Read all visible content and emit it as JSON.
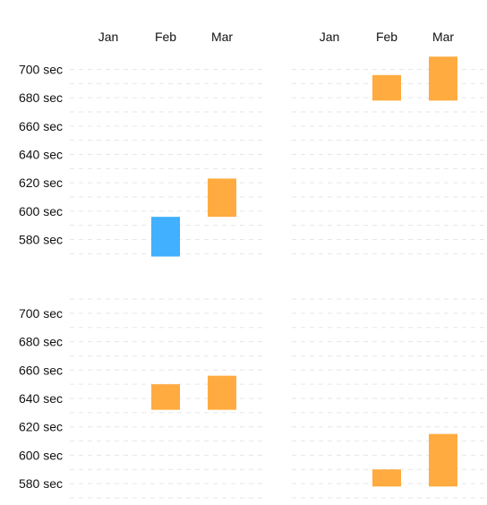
{
  "colors": {
    "increase": "#ffab40",
    "decrease": "#40b0ff",
    "grid": "#e6e6e6",
    "text": "#111111"
  },
  "chart_data": [
    {
      "type": "bar",
      "subtype": "floating-range",
      "title": "",
      "categories": [
        "Jan",
        "Feb",
        "Mar"
      ],
      "ylabel": "",
      "ylim": [
        562,
        706
      ],
      "yticks": [
        580,
        600,
        620,
        640,
        660,
        680,
        700
      ],
      "ytick_labels": [
        "580 sec",
        "600 sec",
        "620 sec",
        "640 sec",
        "660 sec",
        "680 sec",
        "700 sec"
      ],
      "grid": true,
      "bars": [
        {
          "category": "Jan",
          "low": null,
          "high": null
        },
        {
          "category": "Feb",
          "low": 568,
          "high": 596,
          "color": "decrease"
        },
        {
          "category": "Mar",
          "low": 596,
          "high": 623,
          "color": "increase"
        }
      ]
    },
    {
      "type": "bar",
      "subtype": "floating-range",
      "title": "",
      "categories": [
        "Jan",
        "Feb",
        "Mar"
      ],
      "ylabel": "",
      "ylim": [
        562,
        706
      ],
      "grid": true,
      "bars": [
        {
          "category": "Jan",
          "low": null,
          "high": null
        },
        {
          "category": "Feb",
          "low": 678,
          "high": 696,
          "color": "increase"
        },
        {
          "category": "Mar",
          "low": 678,
          "high": 709,
          "color": "increase"
        }
      ]
    },
    {
      "type": "bar",
      "subtype": "floating-range",
      "title": "",
      "categories": [
        "Jan",
        "Feb",
        "Mar"
      ],
      "ylabel": "",
      "ylim": [
        570,
        710
      ],
      "yticks": [
        580,
        600,
        620,
        640,
        660,
        680,
        700
      ],
      "ytick_labels": [
        "580 sec",
        "600 sec",
        "620 sec",
        "640 sec",
        "660 sec",
        "680 sec",
        "700 sec"
      ],
      "grid": true,
      "bars": [
        {
          "category": "Jan",
          "low": null,
          "high": null
        },
        {
          "category": "Feb",
          "low": 632,
          "high": 650,
          "color": "increase"
        },
        {
          "category": "Mar",
          "low": 632,
          "high": 656,
          "color": "increase"
        }
      ]
    },
    {
      "type": "bar",
      "subtype": "floating-range",
      "title": "",
      "categories": [
        "Jan",
        "Feb",
        "Mar"
      ],
      "ylabel": "",
      "ylim": [
        570,
        710
      ],
      "grid": true,
      "bars": [
        {
          "category": "Jan",
          "low": null,
          "high": null
        },
        {
          "category": "Feb",
          "low": 578,
          "high": 590,
          "color": "increase"
        },
        {
          "category": "Mar",
          "low": 578,
          "high": 615,
          "color": "increase"
        }
      ]
    }
  ]
}
